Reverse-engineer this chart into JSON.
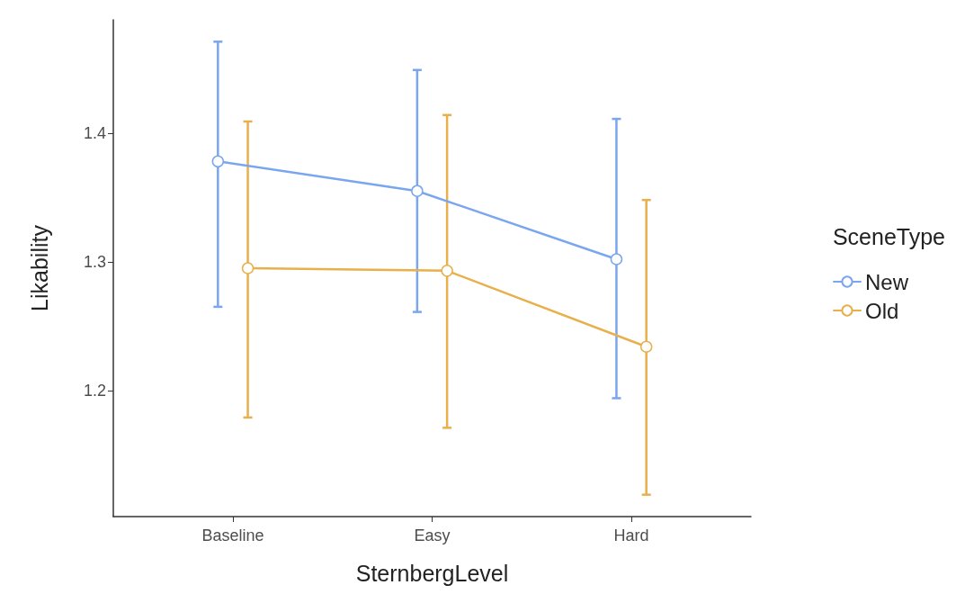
{
  "chart_data": {
    "type": "line",
    "xlabel": "SternbergLevel",
    "ylabel": "Likability",
    "legend_title": "SceneType",
    "categories": [
      "Baseline",
      "Easy",
      "Hard"
    ],
    "series": [
      {
        "name": "New",
        "color": "#7aa6f0",
        "values": [
          1.378,
          1.355,
          1.302
        ],
        "errors": [
          [
            1.265,
            1.471
          ],
          [
            1.261,
            1.449
          ],
          [
            1.194,
            1.411
          ]
        ]
      },
      {
        "name": "Old",
        "color": "#e8b04b",
        "values": [
          1.295,
          1.293,
          1.234
        ],
        "errors": [
          [
            1.179,
            1.409
          ],
          [
            1.171,
            1.414
          ],
          [
            1.119,
            1.348
          ]
        ]
      }
    ],
    "ylim": [
      1.102,
      1.488
    ],
    "yticks": [
      1.2,
      1.3,
      1.4
    ],
    "grid": false,
    "legend": "right",
    "marker": "circle",
    "line_style": "solid"
  }
}
